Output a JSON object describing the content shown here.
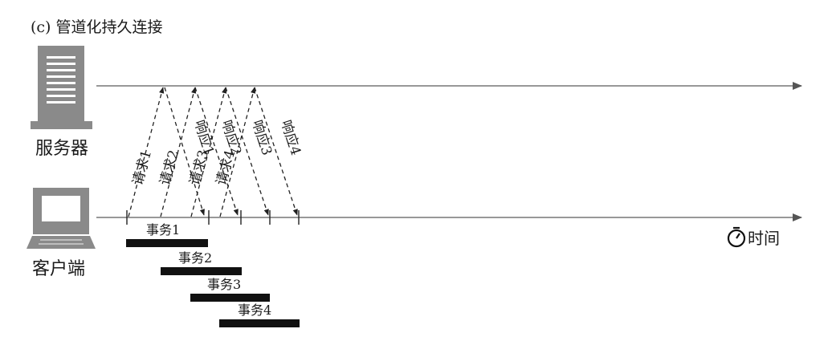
{
  "title": "(c) 管道化持久连接",
  "server_label": "服务器",
  "client_label": "客户端",
  "time_label": "时间",
  "requests": [
    "请求1",
    "请求2",
    "请求3",
    "请求4"
  ],
  "responses": [
    "响应1",
    "响应2",
    "响应3",
    "响应4"
  ],
  "transactions": [
    "事务1",
    "事务2",
    "事务3",
    "事务4"
  ]
}
